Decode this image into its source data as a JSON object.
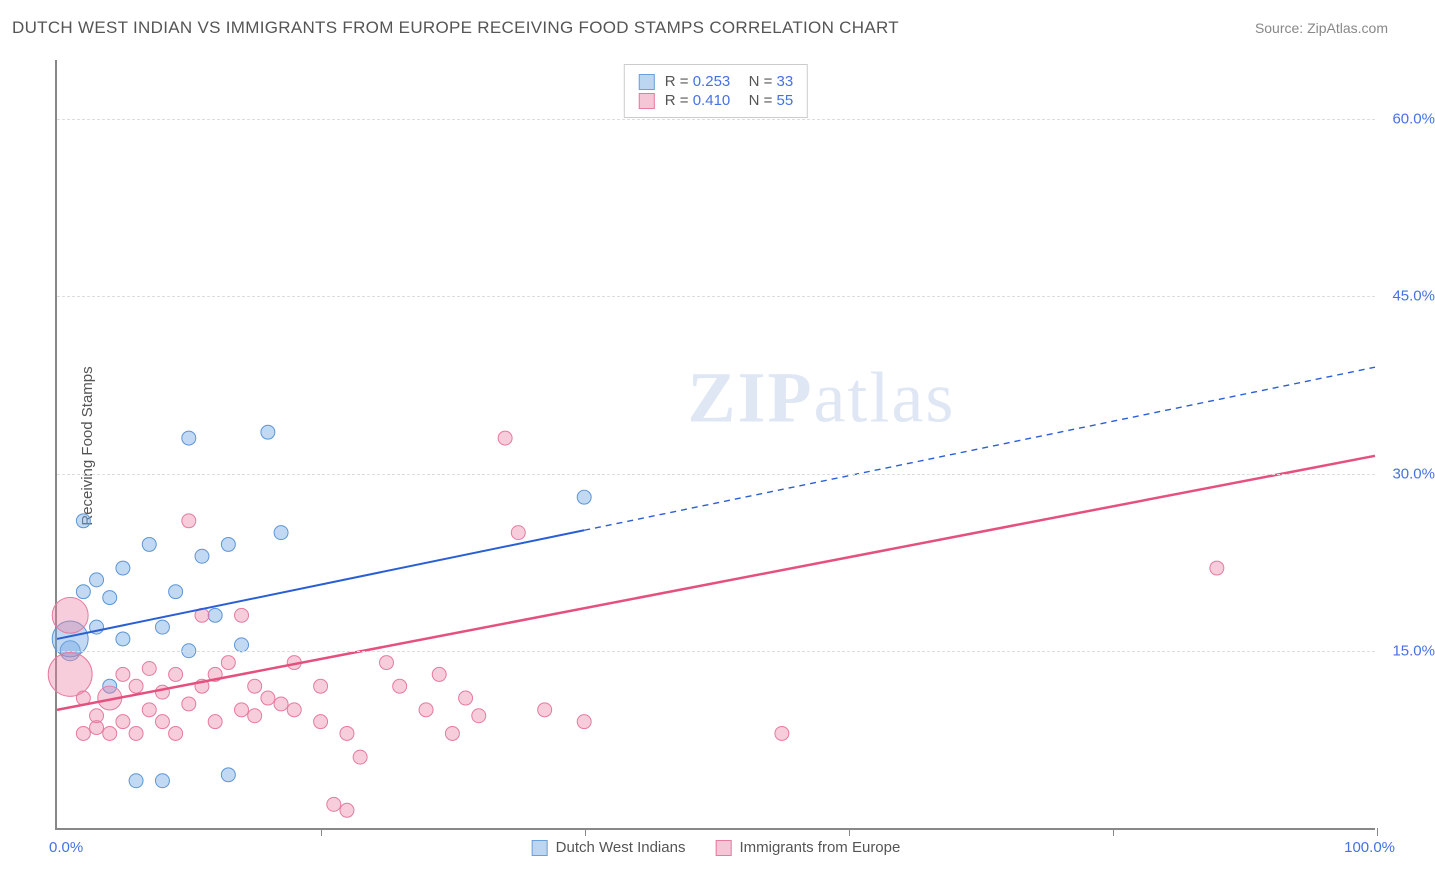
{
  "title": "DUTCH WEST INDIAN VS IMMIGRANTS FROM EUROPE RECEIVING FOOD STAMPS CORRELATION CHART",
  "source_label": "Source: ",
  "source_name": "ZipAtlas.com",
  "ylabel": "Receiving Food Stamps",
  "watermark_bold": "ZIP",
  "watermark_rest": "atlas",
  "chart": {
    "type": "scatter-with-trend",
    "background_color": "#ffffff",
    "grid_color": "#dddddd",
    "axis_color": "#888888",
    "tick_label_color": "#4472e4",
    "text_color": "#555555",
    "xlim": [
      0,
      100
    ],
    "ylim": [
      0,
      65
    ],
    "xtick_positions": [
      0,
      20,
      40,
      60,
      80,
      100
    ],
    "xaxis_min_label": "0.0%",
    "xaxis_max_label": "100.0%",
    "ytick_positions": [
      15,
      30,
      45,
      60
    ],
    "ytick_labels": [
      "15.0%",
      "30.0%",
      "45.0%",
      "60.0%"
    ],
    "series": [
      {
        "key": "dutch",
        "label": "Dutch West Indians",
        "color_fill": "rgba(120,170,230,0.45)",
        "color_stroke": "#5a96d6",
        "swatch_fill": "#bcd5f0",
        "swatch_border": "#6aa0de",
        "trend": {
          "x0": 0,
          "y0": 16,
          "x1": 100,
          "y1": 39,
          "solid_until_x": 40,
          "color": "#2a5fd4",
          "width": 2
        },
        "stats": {
          "r": "0.253",
          "n": "33"
        },
        "points": [
          {
            "x": 1,
            "y": 15,
            "r": 10
          },
          {
            "x": 1,
            "y": 16,
            "r": 18
          },
          {
            "x": 2,
            "y": 26,
            "r": 7
          },
          {
            "x": 2,
            "y": 20,
            "r": 7
          },
          {
            "x": 3,
            "y": 17,
            "r": 7
          },
          {
            "x": 3,
            "y": 21,
            "r": 7
          },
          {
            "x": 4,
            "y": 12,
            "r": 7
          },
          {
            "x": 4,
            "y": 19.5,
            "r": 7
          },
          {
            "x": 5,
            "y": 16,
            "r": 7
          },
          {
            "x": 5,
            "y": 22,
            "r": 7
          },
          {
            "x": 6,
            "y": 4,
            "r": 7
          },
          {
            "x": 7,
            "y": 24,
            "r": 7
          },
          {
            "x": 8,
            "y": 17,
            "r": 7
          },
          {
            "x": 8,
            "y": 4,
            "r": 7
          },
          {
            "x": 9,
            "y": 20,
            "r": 7
          },
          {
            "x": 10,
            "y": 33,
            "r": 7
          },
          {
            "x": 10,
            "y": 15,
            "r": 7
          },
          {
            "x": 11,
            "y": 23,
            "r": 7
          },
          {
            "x": 12,
            "y": 18,
            "r": 7
          },
          {
            "x": 13,
            "y": 4.5,
            "r": 7
          },
          {
            "x": 13,
            "y": 24,
            "r": 7
          },
          {
            "x": 14,
            "y": 15.5,
            "r": 7
          },
          {
            "x": 16,
            "y": 33.5,
            "r": 7
          },
          {
            "x": 17,
            "y": 25,
            "r": 7
          },
          {
            "x": 40,
            "y": 28,
            "r": 7
          }
        ]
      },
      {
        "key": "europe",
        "label": "Immigrants from Europe",
        "color_fill": "rgba(235,130,165,0.4)",
        "color_stroke": "#e67aa0",
        "swatch_fill": "#f5c6d6",
        "swatch_border": "#e67aa0",
        "trend": {
          "x0": 0,
          "y0": 10,
          "x1": 100,
          "y1": 31.5,
          "solid_until_x": 100,
          "color": "#e5517e",
          "width": 2.5
        },
        "stats": {
          "r": "0.410",
          "n": "55"
        },
        "points": [
          {
            "x": 1,
            "y": 13,
            "r": 22
          },
          {
            "x": 1,
            "y": 18,
            "r": 18
          },
          {
            "x": 2,
            "y": 8,
            "r": 7
          },
          {
            "x": 2,
            "y": 11,
            "r": 7
          },
          {
            "x": 3,
            "y": 8.5,
            "r": 7
          },
          {
            "x": 3,
            "y": 9.5,
            "r": 7
          },
          {
            "x": 4,
            "y": 11,
            "r": 12
          },
          {
            "x": 4,
            "y": 8,
            "r": 7
          },
          {
            "x": 5,
            "y": 13,
            "r": 7
          },
          {
            "x": 5,
            "y": 9,
            "r": 7
          },
          {
            "x": 6,
            "y": 12,
            "r": 7
          },
          {
            "x": 6,
            "y": 8,
            "r": 7
          },
          {
            "x": 7,
            "y": 10,
            "r": 7
          },
          {
            "x": 7,
            "y": 13.5,
            "r": 7
          },
          {
            "x": 8,
            "y": 9,
            "r": 7
          },
          {
            "x": 8,
            "y": 11.5,
            "r": 7
          },
          {
            "x": 9,
            "y": 8,
            "r": 7
          },
          {
            "x": 9,
            "y": 13,
            "r": 7
          },
          {
            "x": 10,
            "y": 26,
            "r": 7
          },
          {
            "x": 10,
            "y": 10.5,
            "r": 7
          },
          {
            "x": 11,
            "y": 18,
            "r": 7
          },
          {
            "x": 11,
            "y": 12,
            "r": 7
          },
          {
            "x": 12,
            "y": 13,
            "r": 7
          },
          {
            "x": 12,
            "y": 9,
            "r": 7
          },
          {
            "x": 13,
            "y": 14,
            "r": 7
          },
          {
            "x": 14,
            "y": 10,
            "r": 7
          },
          {
            "x": 14,
            "y": 18,
            "r": 7
          },
          {
            "x": 15,
            "y": 12,
            "r": 7
          },
          {
            "x": 15,
            "y": 9.5,
            "r": 7
          },
          {
            "x": 16,
            "y": 11,
            "r": 7
          },
          {
            "x": 17,
            "y": 10.5,
            "r": 7
          },
          {
            "x": 18,
            "y": 14,
            "r": 7
          },
          {
            "x": 18,
            "y": 10,
            "r": 7
          },
          {
            "x": 20,
            "y": 9,
            "r": 7
          },
          {
            "x": 20,
            "y": 12,
            "r": 7
          },
          {
            "x": 21,
            "y": 2,
            "r": 7
          },
          {
            "x": 22,
            "y": 8,
            "r": 7
          },
          {
            "x": 22,
            "y": 1.5,
            "r": 7
          },
          {
            "x": 23,
            "y": 6,
            "r": 7
          },
          {
            "x": 25,
            "y": 14,
            "r": 7
          },
          {
            "x": 26,
            "y": 12,
            "r": 7
          },
          {
            "x": 28,
            "y": 10,
            "r": 7
          },
          {
            "x": 29,
            "y": 13,
            "r": 7
          },
          {
            "x": 30,
            "y": 8,
            "r": 7
          },
          {
            "x": 31,
            "y": 11,
            "r": 7
          },
          {
            "x": 32,
            "y": 9.5,
            "r": 7
          },
          {
            "x": 34,
            "y": 33,
            "r": 7
          },
          {
            "x": 35,
            "y": 25,
            "r": 7
          },
          {
            "x": 37,
            "y": 10,
            "r": 7
          },
          {
            "x": 40,
            "y": 9,
            "r": 7
          },
          {
            "x": 55,
            "y": 8,
            "r": 7
          },
          {
            "x": 88,
            "y": 22,
            "r": 7
          }
        ]
      }
    ],
    "stats_labels": {
      "r_prefix": "R = ",
      "n_prefix": "N = "
    }
  }
}
